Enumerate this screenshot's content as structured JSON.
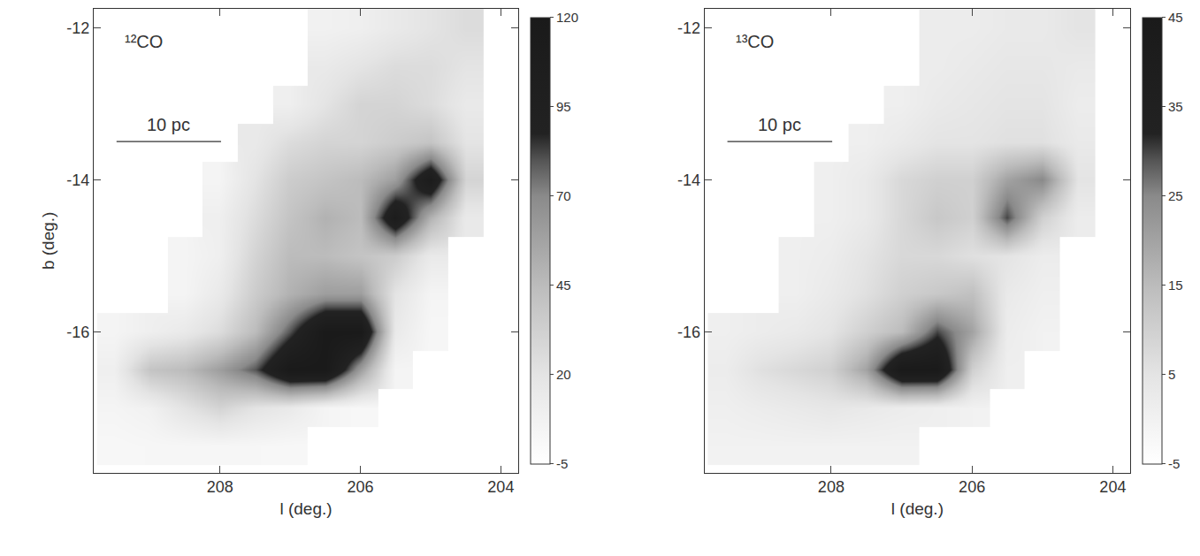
{
  "chart_data": [
    {
      "type": "heatmap",
      "annotations": [
        "¹²CO",
        "10 pc"
      ],
      "xlabel": "l (deg.)",
      "ylabel": "b (deg.)",
      "xlim": [
        209.8,
        203.75
      ],
      "xticks": [
        208,
        206,
        204
      ],
      "ylim": [
        -17.85,
        -11.75
      ],
      "yticks": [
        -12,
        -14,
        -16
      ],
      "x": [
        209.5,
        209.0,
        208.5,
        208.0,
        207.5,
        207.0,
        206.5,
        206.0,
        205.5,
        205.0,
        204.5,
        204.0
      ],
      "y": [
        -17.5,
        -17.0,
        -16.5,
        -16.0,
        -15.5,
        -15.0,
        -14.5,
        -14.0,
        -13.5,
        -13.0,
        -12.5,
        -12.0
      ],
      "cells": [
        [
          2,
          3,
          3,
          3,
          3,
          2,
          null,
          null,
          null,
          null,
          null,
          null
        ],
        [
          5,
          8,
          20,
          30,
          20,
          15,
          5,
          2,
          null,
          null,
          null,
          null
        ],
        [
          10,
          40,
          45,
          60,
          80,
          120,
          120,
          60,
          5,
          null,
          null,
          null
        ],
        [
          5,
          10,
          15,
          25,
          45,
          80,
          120,
          120,
          15,
          3,
          null,
          null
        ],
        [
          null,
          null,
          5,
          15,
          35,
          50,
          60,
          60,
          20,
          5,
          null,
          null
        ],
        [
          null,
          null,
          5,
          10,
          30,
          45,
          45,
          40,
          35,
          15,
          null,
          null
        ],
        [
          null,
          null,
          null,
          10,
          25,
          40,
          50,
          45,
          110,
          50,
          15,
          null
        ],
        [
          null,
          null,
          null,
          5,
          20,
          35,
          40,
          45,
          60,
          110,
          30,
          null
        ],
        [
          null,
          null,
          null,
          null,
          15,
          25,
          30,
          30,
          35,
          40,
          20,
          null
        ],
        [
          null,
          null,
          null,
          null,
          null,
          10,
          20,
          30,
          30,
          25,
          15,
          null
        ],
        [
          null,
          null,
          null,
          null,
          null,
          null,
          15,
          20,
          25,
          25,
          20,
          null
        ],
        [
          null,
          null,
          null,
          null,
          null,
          null,
          8,
          10,
          15,
          20,
          25,
          null
        ]
      ],
      "colorbar": {
        "range": [
          -5,
          120
        ],
        "ticks": [
          -5,
          20,
          45,
          70,
          95,
          120
        ]
      }
    },
    {
      "type": "heatmap",
      "annotations": [
        "¹³CO",
        "10 pc"
      ],
      "xlabel": "l (deg.)",
      "xlim": [
        209.8,
        203.75
      ],
      "xticks": [
        208,
        206,
        204
      ],
      "ylim": [
        -17.85,
        -11.75
      ],
      "yticks": [
        -12,
        -14,
        -16
      ],
      "x": [
        209.5,
        209.0,
        208.5,
        208.0,
        207.5,
        207.0,
        206.5,
        206.0,
        205.5,
        205.0,
        204.5,
        204.0
      ],
      "y": [
        -17.5,
        -17.0,
        -16.5,
        -16.0,
        -15.5,
        -15.0,
        -14.5,
        -14.0,
        -13.5,
        -13.0,
        -12.5,
        -12.0
      ],
      "cells": [
        [
          0,
          0,
          0,
          0,
          0,
          0,
          null,
          null,
          null,
          null,
          null,
          null
        ],
        [
          1,
          2,
          3,
          4,
          3,
          2,
          1,
          0,
          null,
          null,
          null,
          null
        ],
        [
          2,
          6,
          8,
          10,
          20,
          45,
          45,
          10,
          1,
          null,
          null,
          null
        ],
        [
          1,
          2,
          3,
          5,
          10,
          15,
          30,
          20,
          2,
          0,
          null,
          null
        ],
        [
          null,
          null,
          1,
          3,
          6,
          10,
          12,
          14,
          3,
          1,
          null,
          null
        ],
        [
          null,
          null,
          1,
          2,
          5,
          8,
          8,
          6,
          5,
          2,
          null,
          null
        ],
        [
          null,
          null,
          null,
          1,
          3,
          8,
          12,
          10,
          30,
          10,
          2,
          null
        ],
        [
          null,
          null,
          null,
          1,
          3,
          8,
          10,
          10,
          20,
          25,
          5,
          null
        ],
        [
          null,
          null,
          null,
          null,
          1,
          3,
          5,
          5,
          6,
          6,
          3,
          null
        ],
        [
          null,
          null,
          null,
          null,
          null,
          1,
          3,
          4,
          5,
          5,
          2,
          null
        ],
        [
          null,
          null,
          null,
          null,
          null,
          null,
          2,
          3,
          4,
          4,
          3,
          null
        ],
        [
          null,
          null,
          null,
          null,
          null,
          null,
          2,
          2,
          3,
          3,
          5,
          null
        ]
      ],
      "colorbar": {
        "range": [
          -5,
          45
        ],
        "ticks": [
          -5,
          5,
          15,
          25,
          35,
          45
        ]
      }
    }
  ]
}
